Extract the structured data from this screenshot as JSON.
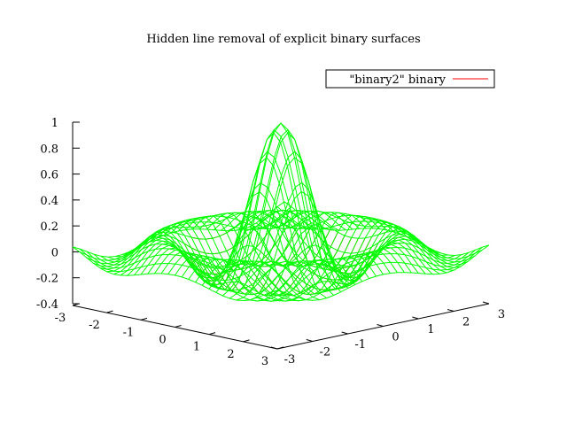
{
  "chart_data": {
    "type": "surface",
    "title": "Hidden line removal of explicit binary surfaces",
    "legend": {
      "label": "\"binary2\" binary",
      "placement": "top-right",
      "color": "#ff0000"
    },
    "function": "z = sin(r)/r, r = sqrt(x^2 + y^2) * pi",
    "x": {
      "range": [
        -3,
        3
      ],
      "ticks": [
        "-3",
        "-2",
        "-1",
        "0",
        "1",
        "2",
        "3"
      ]
    },
    "y": {
      "range": [
        -3,
        3
      ],
      "ticks": [
        "-3",
        "-2",
        "-1",
        "0",
        "1",
        "2",
        "3"
      ]
    },
    "z": {
      "range": [
        -0.4,
        1
      ],
      "ticks": [
        "-0.4",
        "-0.2",
        "0",
        "0.2",
        "0.4",
        "0.6",
        "0.8",
        "1"
      ]
    },
    "surface_colors": {
      "top": "#00ff00",
      "bottom": "#ff0000"
    },
    "grid": false
  }
}
